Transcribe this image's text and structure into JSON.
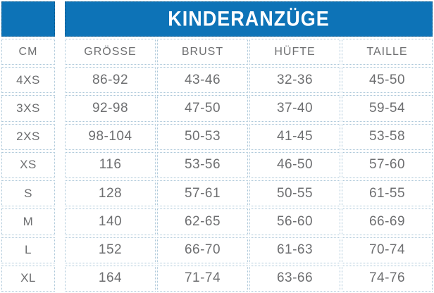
{
  "chart_data": {
    "type": "table",
    "title": "KINDERANZÜGE",
    "corner_label": "CM",
    "columns": [
      "GRÖSSE",
      "BRUST",
      "HÜFTE",
      "TAILLE"
    ],
    "rows": [
      {
        "size": "4XS",
        "values": [
          "86-92",
          "43-46",
          "32-36",
          "45-50"
        ]
      },
      {
        "size": "3XS",
        "values": [
          "92-98",
          "47-50",
          "37-40",
          "59-54"
        ]
      },
      {
        "size": "2XS",
        "values": [
          "98-104",
          "50-53",
          "41-45",
          "53-58"
        ]
      },
      {
        "size": "XS",
        "values": [
          "116",
          "53-56",
          "46-50",
          "57-60"
        ]
      },
      {
        "size": "S",
        "values": [
          "128",
          "57-61",
          "50-55",
          "61-55"
        ]
      },
      {
        "size": "M",
        "values": [
          "140",
          "62-65",
          "56-60",
          "66-69"
        ]
      },
      {
        "size": "L",
        "values": [
          "152",
          "66-70",
          "61-63",
          "70-74"
        ]
      },
      {
        "size": "XL",
        "values": [
          "164",
          "71-74",
          "63-66",
          "74-76"
        ]
      }
    ],
    "layout": {
      "legend": "none",
      "grid": "dotted-cell-borders"
    }
  },
  "colors": {
    "header_bg": "#0d73b7",
    "title_text": "#ffffff",
    "cell_border": "#aac6d8",
    "body_text": "#6e6f71"
  }
}
